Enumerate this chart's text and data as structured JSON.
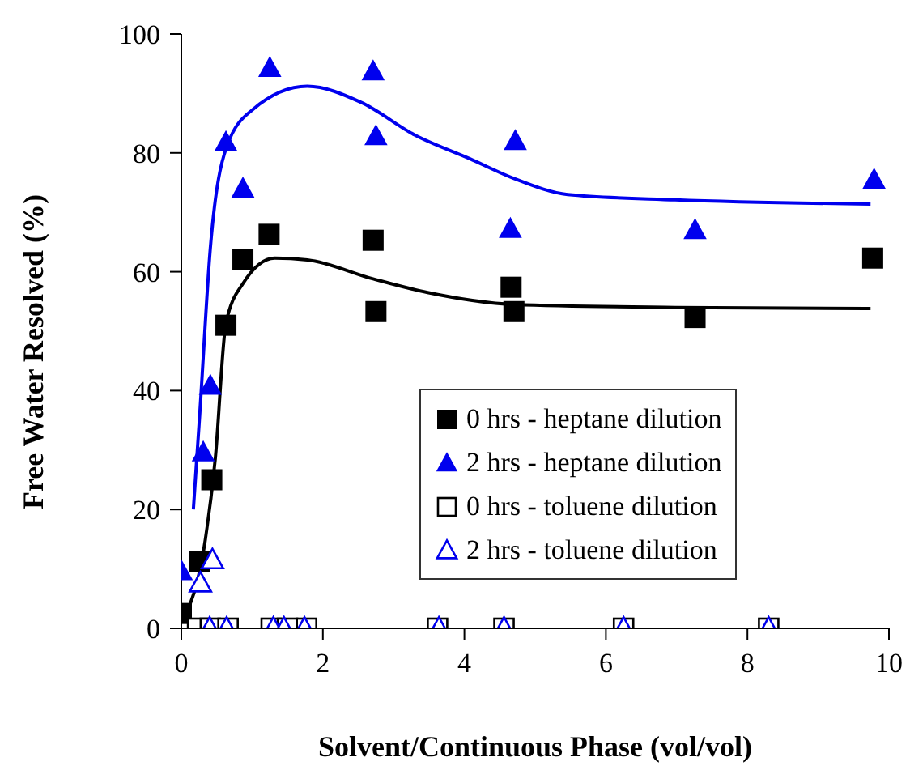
{
  "chart_data": {
    "type": "scatter",
    "xlabel": "Solvent/Continuous Phase (vol/vol)",
    "ylabel": "Free Water Resolved (%)",
    "xlim": [
      0,
      10
    ],
    "xticks": [
      0,
      2,
      4,
      6,
      8,
      10
    ],
    "ylim": [
      0,
      100
    ],
    "yticks": [
      0,
      20,
      40,
      60,
      80,
      100
    ],
    "grid": false,
    "legend": "bottom right",
    "series": [
      {
        "type": "line",
        "marker": "none",
        "color": "#0000ee",
        "x": [
          0.17,
          0.26,
          0.41,
          0.64,
          1.01,
          1.78,
          2.54,
          3.3,
          4.08,
          4.7,
          5.46,
          6.98,
          9.74
        ],
        "values": [
          20,
          36,
          64,
          81,
          87.3,
          91.2,
          88.5,
          83,
          79,
          75.7,
          73,
          72.1,
          71.4
        ]
      },
      {
        "type": "line",
        "marker": "none",
        "color": "#000000",
        "x": [
          0.06,
          0.34,
          0.48,
          0.63,
          0.87,
          1.32,
          1.78,
          2.71,
          3.48,
          4.7,
          6.98,
          9.74
        ],
        "values": [
          2.2,
          15,
          28.6,
          51.3,
          58,
          62.3,
          62,
          58.8,
          56.5,
          54.5,
          54,
          53.8
        ]
      },
      {
        "name": "0 hrs - heptane dilution",
        "marker": "square",
        "color": "#000000",
        "x": [
          0,
          0.26,
          0.43,
          0.63,
          0.87,
          1.24,
          2.71,
          2.75,
          4.66,
          4.7,
          7.26,
          9.77
        ],
        "values": [
          2.5,
          11.3,
          25,
          51,
          62,
          66.3,
          65.3,
          53.3,
          57.4,
          53.3,
          52.3,
          62.3
        ]
      },
      {
        "name": "2 hrs - heptane dilution",
        "marker": "triangle",
        "color": "#0000ee",
        "x": [
          0,
          0.31,
          0.41,
          0.63,
          0.87,
          1.25,
          2.71,
          2.75,
          4.72,
          4.65,
          7.26,
          9.79
        ],
        "values": [
          9.6,
          29.6,
          40.8,
          81.8,
          74,
          94.3,
          93.7,
          82.8,
          82,
          67.2,
          67,
          75.5
        ]
      },
      {
        "name": "0 hrs - toluene dilution",
        "marker": "square-open",
        "color": "#000000",
        "x": [
          0.23,
          0.41,
          0.66,
          1.27,
          1.5,
          1.77,
          3.62,
          4.56,
          6.25,
          8.3
        ],
        "values": [
          0,
          0,
          0,
          0,
          0,
          0,
          0,
          0,
          0,
          0
        ]
      },
      {
        "name": "2 hrs - toluene dilution",
        "marker": "triangle-open",
        "color": "#0000ee",
        "x": [
          0.27,
          0.44,
          0.4,
          0.64,
          1.3,
          1.45,
          1.74,
          3.64,
          4.56,
          6.25,
          8.3
        ],
        "values": [
          7.6,
          11.5,
          0,
          0,
          0,
          0,
          0,
          0,
          0,
          0,
          0
        ]
      }
    ]
  }
}
